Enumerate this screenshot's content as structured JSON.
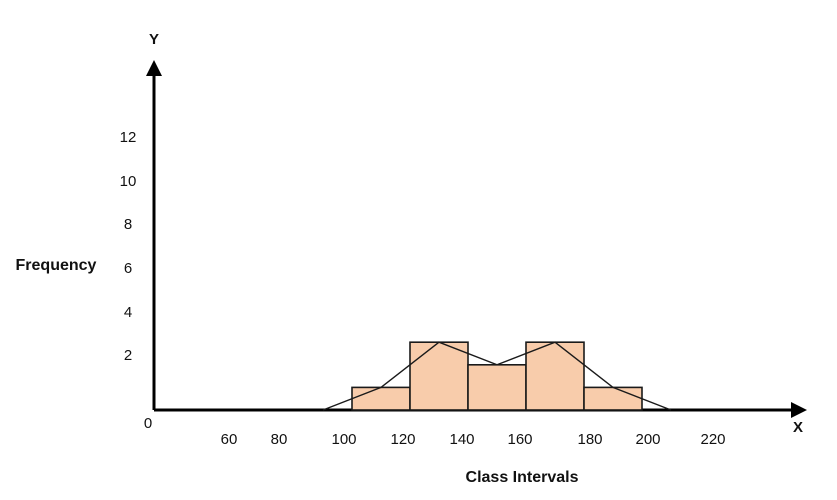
{
  "chart_data": {
    "type": "bar",
    "subtype": "histogram-with-frequency-polygon",
    "xlabel": "Class Intervals",
    "ylabel": "Frequency",
    "x_axis_letter": "X",
    "y_axis_letter": "Y",
    "origin_label": "0",
    "x_tick_labels": [
      "60",
      "80",
      "100",
      "120",
      "140",
      "160",
      "180",
      "200",
      "220"
    ],
    "y_tick_labels": [
      "2",
      "4",
      "6",
      "8",
      "10",
      "12"
    ],
    "bins": [
      {
        "start": 100,
        "end": 120,
        "frequency": 1
      },
      {
        "start": 120,
        "end": 140,
        "frequency": 3
      },
      {
        "start": 140,
        "end": 160,
        "frequency": 2
      },
      {
        "start": 160,
        "end": 180,
        "frequency": 3
      },
      {
        "start": 180,
        "end": 200,
        "frequency": 1
      }
    ],
    "polygon": [
      {
        "x": 90,
        "y": 0
      },
      {
        "x": 110,
        "y": 1
      },
      {
        "x": 130,
        "y": 3
      },
      {
        "x": 150,
        "y": 2
      },
      {
        "x": 170,
        "y": 3
      },
      {
        "x": 190,
        "y": 1
      },
      {
        "x": 210,
        "y": 0
      }
    ],
    "colors": {
      "bar_fill": "#f8ccab",
      "bar_stroke": "#1a1a1a",
      "line": "#1a1a1a",
      "axis": "#000000"
    }
  }
}
